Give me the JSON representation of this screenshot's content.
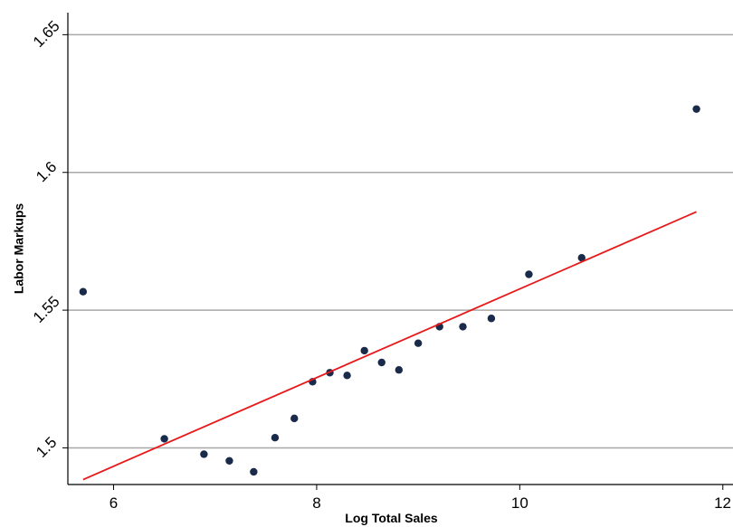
{
  "chart_data": {
    "type": "scatter",
    "title": "",
    "xlabel": "Log Total Sales",
    "ylabel": "Labor Markups",
    "xlim": [
      5.55,
      12.1
    ],
    "ylim": [
      1.4867,
      1.658
    ],
    "x_ticks": [
      {
        "value": 6,
        "label": "6"
      },
      {
        "value": 8,
        "label": "8"
      },
      {
        "value": 10,
        "label": "10"
      },
      {
        "value": 12,
        "label": "12"
      }
    ],
    "y_ticks": [
      {
        "value": 1.5,
        "label": "1.5"
      },
      {
        "value": 1.55,
        "label": "1.55"
      },
      {
        "value": 1.6,
        "label": "1.6"
      },
      {
        "value": 1.65,
        "label": "1.65"
      }
    ],
    "grid": "horizontal",
    "colors": {
      "points": "#1a2a4a",
      "fit_line": "#e8191a",
      "grid": "#a8a8a8",
      "axis": "#000000"
    },
    "series": [
      {
        "type": "scatter",
        "x": [
          5.7,
          6.5,
          6.89,
          7.14,
          7.38,
          7.59,
          7.78,
          7.96,
          8.13,
          8.3,
          8.47,
          8.64,
          8.81,
          9.0,
          9.21,
          9.44,
          9.72,
          10.09,
          10.61,
          11.74
        ],
        "y": [
          1.5567,
          1.5033,
          1.4977,
          1.4953,
          1.4913,
          1.5037,
          1.5107,
          1.524,
          1.5273,
          1.5263,
          1.5353,
          1.531,
          1.5283,
          1.538,
          1.544,
          1.544,
          1.547,
          1.563,
          1.569,
          1.623
        ]
      },
      {
        "type": "line",
        "x": [
          5.7,
          11.74
        ],
        "y": [
          1.4885,
          1.5857
        ]
      }
    ]
  }
}
